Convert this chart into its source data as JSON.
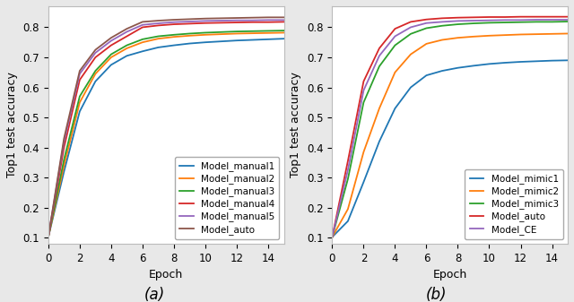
{
  "epochs": [
    0,
    1,
    2,
    3,
    4,
    5,
    6,
    7,
    8,
    9,
    10,
    11,
    12,
    13,
    14,
    15
  ],
  "subplot_a": {
    "xlabel": "Epoch",
    "ylabel": "Top1 test accuracy",
    "ylim": [
      0.08,
      0.87
    ],
    "xlim": [
      0,
      15
    ],
    "series": [
      {
        "label": "Model_manual1",
        "color": "#1f77b4",
        "values": [
          0.102,
          0.32,
          0.52,
          0.62,
          0.675,
          0.705,
          0.72,
          0.733,
          0.74,
          0.746,
          0.75,
          0.753,
          0.756,
          0.758,
          0.76,
          0.762
        ]
      },
      {
        "label": "Model_manual2",
        "color": "#ff7f0e",
        "values": [
          0.102,
          0.34,
          0.55,
          0.645,
          0.7,
          0.73,
          0.75,
          0.762,
          0.768,
          0.772,
          0.775,
          0.777,
          0.779,
          0.78,
          0.781,
          0.782
        ]
      },
      {
        "label": "Model_manual3",
        "color": "#2ca02c",
        "values": [
          0.102,
          0.36,
          0.57,
          0.655,
          0.71,
          0.74,
          0.76,
          0.77,
          0.775,
          0.779,
          0.782,
          0.784,
          0.786,
          0.787,
          0.788,
          0.789
        ]
      },
      {
        "label": "Model_manual4",
        "color": "#d62728",
        "values": [
          0.102,
          0.4,
          0.625,
          0.7,
          0.74,
          0.77,
          0.8,
          0.806,
          0.81,
          0.812,
          0.814,
          0.815,
          0.816,
          0.817,
          0.817,
          0.818
        ]
      },
      {
        "label": "Model_manual5",
        "color": "#9467bd",
        "values": [
          0.102,
          0.42,
          0.645,
          0.715,
          0.755,
          0.785,
          0.808,
          0.813,
          0.817,
          0.819,
          0.821,
          0.822,
          0.823,
          0.823,
          0.824,
          0.824
        ]
      },
      {
        "label": "Model_auto",
        "color": "#8c564b",
        "values": [
          0.102,
          0.43,
          0.655,
          0.725,
          0.765,
          0.795,
          0.818,
          0.822,
          0.825,
          0.827,
          0.829,
          0.83,
          0.831,
          0.832,
          0.833,
          0.833
        ]
      }
    ]
  },
  "subplot_b": {
    "xlabel": "Epoch",
    "ylabel": "Top1 test accuracy",
    "ylim": [
      0.08,
      0.87
    ],
    "xlim": [
      0,
      15
    ],
    "series": [
      {
        "label": "Model_mimic1",
        "color": "#1f77b4",
        "values": [
          0.102,
          0.155,
          0.285,
          0.42,
          0.53,
          0.6,
          0.64,
          0.655,
          0.665,
          0.672,
          0.678,
          0.682,
          0.685,
          0.687,
          0.689,
          0.69
        ]
      },
      {
        "label": "Model_mimic2",
        "color": "#ff7f0e",
        "values": [
          0.102,
          0.195,
          0.385,
          0.53,
          0.65,
          0.71,
          0.745,
          0.758,
          0.765,
          0.769,
          0.772,
          0.774,
          0.776,
          0.777,
          0.778,
          0.779
        ]
      },
      {
        "label": "Model_mimic3",
        "color": "#2ca02c",
        "values": [
          0.102,
          0.295,
          0.55,
          0.67,
          0.74,
          0.778,
          0.797,
          0.805,
          0.81,
          0.813,
          0.815,
          0.816,
          0.817,
          0.818,
          0.818,
          0.819
        ]
      },
      {
        "label": "Model_auto",
        "color": "#d62728",
        "values": [
          0.102,
          0.355,
          0.62,
          0.73,
          0.795,
          0.818,
          0.826,
          0.83,
          0.832,
          0.833,
          0.834,
          0.834,
          0.835,
          0.835,
          0.835,
          0.835
        ]
      },
      {
        "label": "Model_CE",
        "color": "#9467bd",
        "values": [
          0.102,
          0.325,
          0.59,
          0.705,
          0.77,
          0.8,
          0.814,
          0.818,
          0.821,
          0.822,
          0.823,
          0.824,
          0.824,
          0.825,
          0.825,
          0.825
        ]
      }
    ]
  },
  "legend_fontsize": 7.5,
  "tick_fontsize": 8.5,
  "label_fontsize": 9,
  "linewidth": 1.3,
  "fig_label_fontsize": 12,
  "background_color": "#e8e8e8"
}
